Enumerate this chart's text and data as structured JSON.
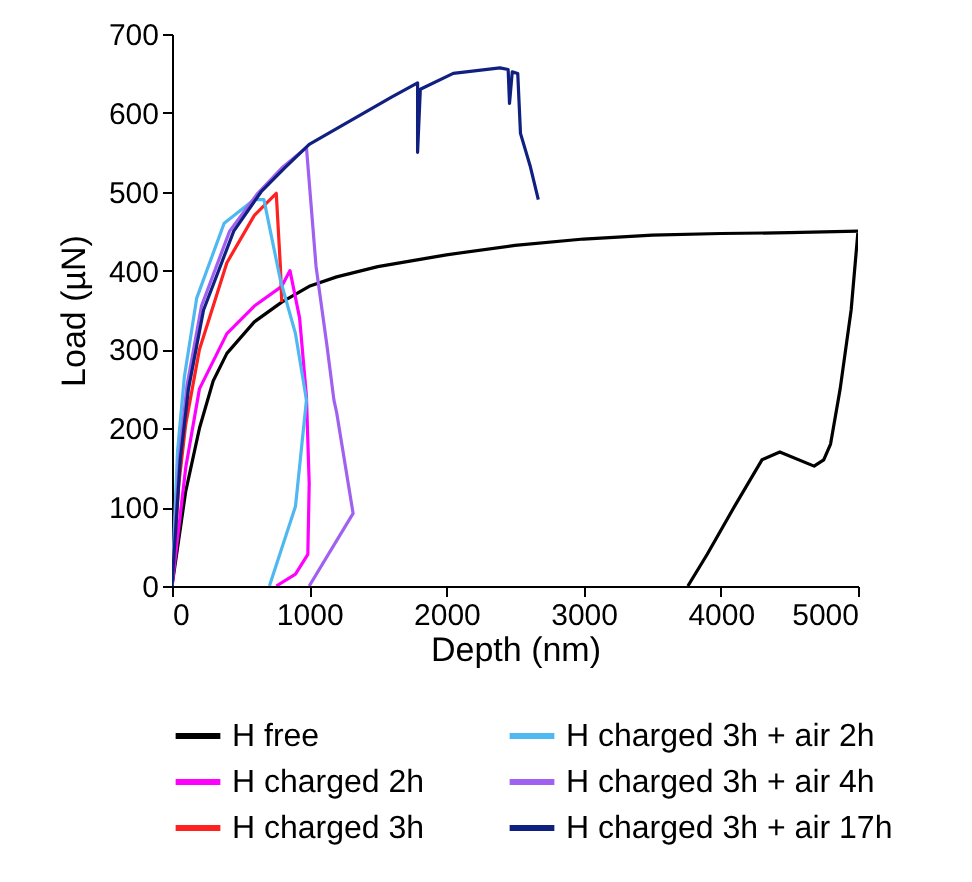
{
  "chart_data": {
    "type": "line",
    "xlabel": "Depth (nm)",
    "ylabel": "Load (µN)",
    "xlim": [
      0,
      5000
    ],
    "ylim": [
      0,
      700
    ],
    "xticks": [
      0,
      1000,
      2000,
      3000,
      4000,
      5000
    ],
    "yticks": [
      0,
      100,
      200,
      300,
      400,
      500,
      600,
      700
    ],
    "grid": false,
    "legend": "bottom",
    "line_style": "solid",
    "marker": "none",
    "series": [
      {
        "name": "H free",
        "color": "#000000",
        "x": [
          0,
          50,
          100,
          200,
          300,
          400,
          600,
          800,
          1000,
          1200,
          1500,
          2000,
          2500,
          3000,
          3500,
          4000,
          4500,
          5000,
          4950,
          4870,
          4800,
          4750,
          4680,
          4430,
          4300,
          4100,
          3900,
          3760
        ],
        "values": [
          0,
          60,
          120,
          200,
          260,
          295,
          335,
          360,
          380,
          392,
          405,
          420,
          432,
          440,
          445,
          447,
          448,
          450,
          350,
          250,
          180,
          160,
          152,
          170,
          160,
          101,
          40,
          0
        ]
      },
      {
        "name": "H charged 2h",
        "color": "#ff00ff",
        "x": [
          0,
          100,
          200,
          400,
          600,
          800,
          860,
          930,
          980,
          1000,
          990,
          900,
          760
        ],
        "values": [
          0,
          150,
          250,
          320,
          355,
          380,
          400,
          340,
          240,
          130,
          40,
          15,
          0
        ]
      },
      {
        "name": "H charged 3h",
        "color": "#ff2020",
        "x": [
          0,
          50,
          100,
          200,
          400,
          600,
          760,
          790,
          800
        ],
        "values": [
          0,
          130,
          205,
          300,
          410,
          470,
          498,
          405,
          360
        ]
      },
      {
        "name": "H charged 3h + air 2h",
        "color": "#4fb8f0",
        "x": [
          0,
          40,
          90,
          180,
          380,
          600,
          670,
          790,
          900,
          980,
          900,
          710
        ],
        "values": [
          0,
          170,
          265,
          365,
          460,
          490,
          490,
          388,
          320,
          236,
          101,
          0
        ]
      },
      {
        "name": "H charged 3h + air 4h",
        "color": "#a060f0",
        "x": [
          0,
          55,
          110,
          215,
          420,
          620,
          800,
          980,
          1050,
          1130,
          1180,
          1200,
          1320,
          1000
        ],
        "values": [
          0,
          165,
          255,
          355,
          450,
          497,
          530,
          556,
          405,
          304,
          236,
          220,
          92,
          0
        ]
      },
      {
        "name": "H charged 3h + air 17h",
        "color": "#102080",
        "x": [
          0,
          60,
          120,
          230,
          450,
          650,
          820,
          1000,
          1200,
          1400,
          1600,
          1790,
          1790,
          1810,
          2050,
          2390,
          2450,
          2460,
          2480,
          2520,
          2540,
          2610,
          2670
        ],
        "values": [
          0,
          160,
          250,
          350,
          450,
          500,
          530,
          560,
          580,
          600,
          620,
          638,
          550,
          630,
          650,
          657,
          655,
          612,
          652,
          650,
          574,
          533,
          490
        ]
      }
    ]
  }
}
